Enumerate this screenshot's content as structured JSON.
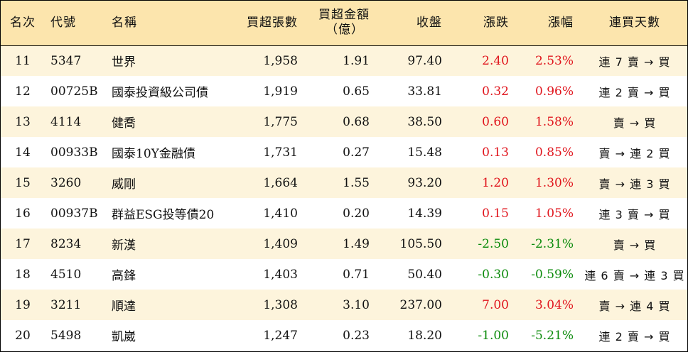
{
  "headers": {
    "rank": "名次",
    "code": "代號",
    "name": "名稱",
    "net_buy_lots": "買超張數",
    "net_buy_amount_line1": "買超金額",
    "net_buy_amount_line2": "（億）",
    "close": "收盤",
    "change": "漲跌",
    "change_pct": "漲幅",
    "consecutive_days": "連買天數"
  },
  "rows": [
    {
      "rank": "11",
      "code": "5347",
      "name": "世界",
      "lots": "1,958",
      "amount": "1.91",
      "close": "97.40",
      "change": "2.40",
      "pct": "2.53%",
      "direction": "up",
      "days": "連 7 賣 → 買"
    },
    {
      "rank": "12",
      "code": "00725B",
      "name": "國泰投資級公司債",
      "lots": "1,919",
      "amount": "0.65",
      "close": "33.81",
      "change": "0.32",
      "pct": "0.96%",
      "direction": "up",
      "days": "連 2 賣 → 買"
    },
    {
      "rank": "13",
      "code": "4114",
      "name": "健喬",
      "lots": "1,775",
      "amount": "0.68",
      "close": "38.50",
      "change": "0.60",
      "pct": "1.58%",
      "direction": "up",
      "days": "賣 → 買"
    },
    {
      "rank": "14",
      "code": "00933B",
      "name": "國泰10Y金融債",
      "lots": "1,731",
      "amount": "0.27",
      "close": "15.48",
      "change": "0.13",
      "pct": "0.85%",
      "direction": "up",
      "days": "賣 → 連 2 買"
    },
    {
      "rank": "15",
      "code": "3260",
      "name": "威剛",
      "lots": "1,664",
      "amount": "1.55",
      "close": "93.20",
      "change": "1.20",
      "pct": "1.30%",
      "direction": "up",
      "days": "賣 → 連 3 買"
    },
    {
      "rank": "16",
      "code": "00937B",
      "name": "群益ESG投等債20",
      "lots": "1,410",
      "amount": "0.20",
      "close": "14.39",
      "change": "0.15",
      "pct": "1.05%",
      "direction": "up",
      "days": "連 3 賣 → 買"
    },
    {
      "rank": "17",
      "code": "8234",
      "name": "新漢",
      "lots": "1,409",
      "amount": "1.49",
      "close": "105.50",
      "change": "-2.50",
      "pct": "-2.31%",
      "direction": "down",
      "days": "賣 → 買"
    },
    {
      "rank": "18",
      "code": "4510",
      "name": "高鋒",
      "lots": "1,403",
      "amount": "0.71",
      "close": "50.40",
      "change": "-0.30",
      "pct": "-0.59%",
      "direction": "down",
      "days": "連 6 賣 → 連 3 買"
    },
    {
      "rank": "19",
      "code": "3211",
      "name": "順達",
      "lots": "1,308",
      "amount": "3.10",
      "close": "237.00",
      "change": "7.00",
      "pct": "3.04%",
      "direction": "up",
      "days": "賣 → 連 4 買"
    },
    {
      "rank": "20",
      "code": "5498",
      "name": "凱崴",
      "lots": "1,247",
      "amount": "0.23",
      "close": "18.20",
      "change": "-1.00",
      "pct": "-5.21%",
      "direction": "down",
      "days": "連 2 賣 → 買"
    }
  ],
  "colors": {
    "header_bg": "#fce5ad",
    "odd_row_bg": "#fdf4dc",
    "up": "#e0141c",
    "down": "#0a8a0a"
  }
}
